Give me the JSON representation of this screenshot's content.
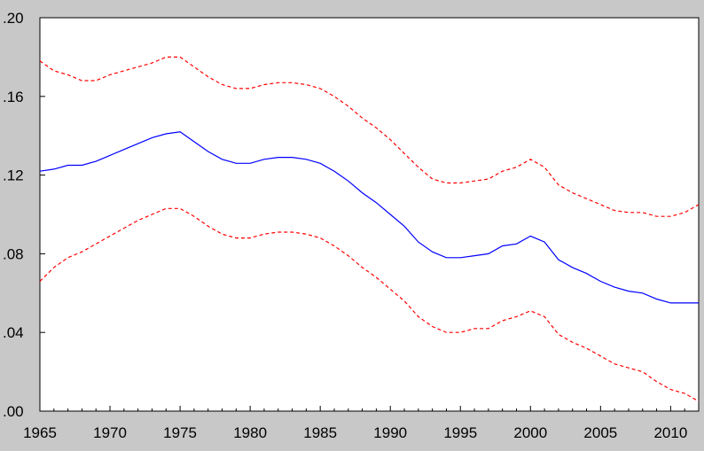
{
  "chart_data": {
    "type": "line",
    "title": "",
    "xlabel": "",
    "ylabel": "",
    "xlim": [
      1965,
      2012
    ],
    "ylim": [
      0.0,
      0.2
    ],
    "x_ticks": [
      1965,
      1970,
      1975,
      1980,
      1985,
      1990,
      1995,
      2000,
      2005,
      2010
    ],
    "x_tick_labels": [
      "1965",
      "1970",
      "1975",
      "1980",
      "1985",
      "1990",
      "1995",
      "2000",
      "2005",
      "2010"
    ],
    "y_ticks": [
      0.0,
      0.04,
      0.08,
      0.12,
      0.16,
      0.2
    ],
    "y_tick_labels": [
      ".00",
      ".04",
      ".08",
      ".12",
      ".16",
      ".20"
    ],
    "grid": false,
    "legend": "none",
    "colors": {
      "estimate": "#0000ff",
      "bands": "#ff0000",
      "plot_bg": "#ffffff",
      "frame_bg": "#c8c8c8"
    },
    "series": [
      {
        "style": "solid",
        "x": [
          1965,
          1966,
          1967,
          1968,
          1969,
          1970,
          1971,
          1972,
          1973,
          1974,
          1975,
          1976,
          1977,
          1978,
          1979,
          1980,
          1981,
          1982,
          1983,
          1984,
          1985,
          1986,
          1987,
          1988,
          1989,
          1990,
          1991,
          1992,
          1993,
          1994,
          1995,
          1996,
          1997,
          1998,
          1999,
          2000,
          2001,
          2002,
          2003,
          2004,
          2005,
          2006,
          2007,
          2008,
          2009,
          2010,
          2011,
          2012
        ],
        "values": [
          0.122,
          0.123,
          0.125,
          0.125,
          0.127,
          0.13,
          0.133,
          0.136,
          0.139,
          0.141,
          0.142,
          0.137,
          0.132,
          0.128,
          0.126,
          0.126,
          0.128,
          0.129,
          0.129,
          0.128,
          0.126,
          0.122,
          0.117,
          0.111,
          0.106,
          0.1,
          0.094,
          0.086,
          0.081,
          0.078,
          0.078,
          0.079,
          0.08,
          0.084,
          0.085,
          0.089,
          0.086,
          0.077,
          0.073,
          0.07,
          0.066,
          0.063,
          0.061,
          0.06,
          0.057,
          0.055,
          0.055,
          0.055
        ]
      },
      {
        "style": "dashed",
        "x": [
          1965,
          1966,
          1967,
          1968,
          1969,
          1970,
          1971,
          1972,
          1973,
          1974,
          1975,
          1976,
          1977,
          1978,
          1979,
          1980,
          1981,
          1982,
          1983,
          1984,
          1985,
          1986,
          1987,
          1988,
          1989,
          1990,
          1991,
          1992,
          1993,
          1994,
          1995,
          1996,
          1997,
          1998,
          1999,
          2000,
          2001,
          2002,
          2003,
          2004,
          2005,
          2006,
          2007,
          2008,
          2009,
          2010,
          2011,
          2012
        ],
        "values": [
          0.178,
          0.173,
          0.171,
          0.168,
          0.168,
          0.171,
          0.173,
          0.175,
          0.177,
          0.18,
          0.18,
          0.175,
          0.17,
          0.166,
          0.164,
          0.164,
          0.166,
          0.167,
          0.167,
          0.166,
          0.164,
          0.16,
          0.155,
          0.149,
          0.144,
          0.138,
          0.131,
          0.124,
          0.118,
          0.116,
          0.116,
          0.117,
          0.118,
          0.122,
          0.124,
          0.128,
          0.124,
          0.115,
          0.111,
          0.108,
          0.105,
          0.102,
          0.101,
          0.101,
          0.099,
          0.099,
          0.101,
          0.105
        ]
      },
      {
        "style": "dashed",
        "x": [
          1965,
          1966,
          1967,
          1968,
          1969,
          1970,
          1971,
          1972,
          1973,
          1974,
          1975,
          1976,
          1977,
          1978,
          1979,
          1980,
          1981,
          1982,
          1983,
          1984,
          1985,
          1986,
          1987,
          1988,
          1989,
          1990,
          1991,
          1992,
          1993,
          1994,
          1995,
          1996,
          1997,
          1998,
          1999,
          2000,
          2001,
          2002,
          2003,
          2004,
          2005,
          2006,
          2007,
          2008,
          2009,
          2010,
          2011,
          2012
        ],
        "values": [
          0.066,
          0.073,
          0.078,
          0.081,
          0.085,
          0.089,
          0.093,
          0.097,
          0.1,
          0.103,
          0.103,
          0.099,
          0.094,
          0.09,
          0.088,
          0.088,
          0.09,
          0.091,
          0.091,
          0.09,
          0.088,
          0.084,
          0.079,
          0.073,
          0.068,
          0.062,
          0.056,
          0.048,
          0.043,
          0.04,
          0.04,
          0.042,
          0.042,
          0.046,
          0.048,
          0.051,
          0.048,
          0.039,
          0.035,
          0.032,
          0.028,
          0.024,
          0.022,
          0.02,
          0.015,
          0.011,
          0.009,
          0.005
        ]
      }
    ]
  }
}
